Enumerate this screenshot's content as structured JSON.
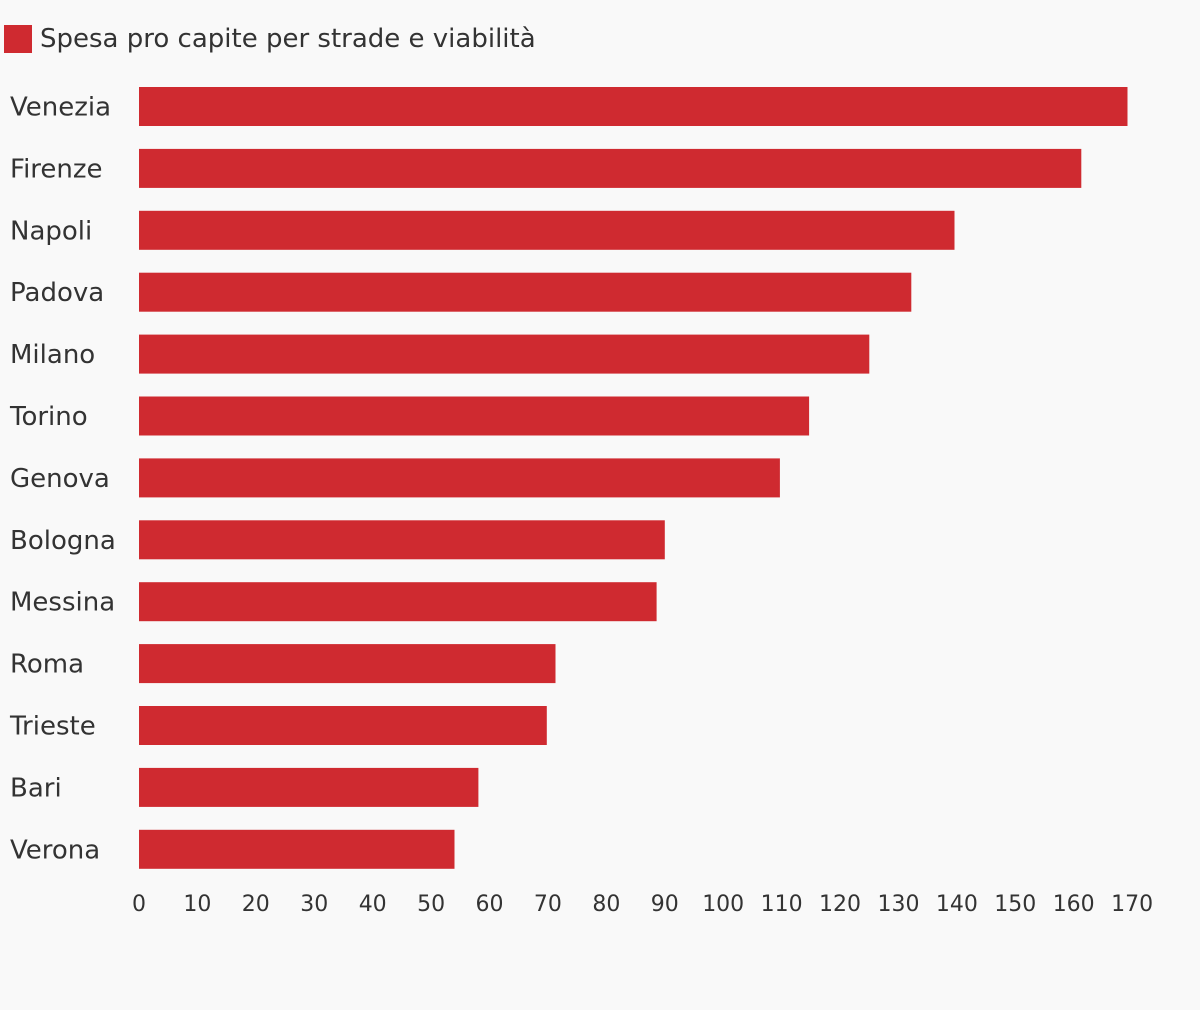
{
  "legend": {
    "label": "Spesa pro capite per strade e viabilità"
  },
  "colors": {
    "bar": "#cf2a30",
    "text": "#333333",
    "background": "#f9f9f9"
  },
  "chart_data": {
    "type": "bar",
    "orientation": "horizontal",
    "categories": [
      "Venezia",
      "Firenze",
      "Napoli",
      "Padova",
      "Milano",
      "Torino",
      "Genova",
      "Bologna",
      "Messina",
      "Roma",
      "Trieste",
      "Bari",
      "Verona"
    ],
    "series": [
      {
        "name": "Spesa pro capite per strade e viabilità",
        "values": [
          169.2,
          161.3,
          139.6,
          132.2,
          125.0,
          114.7,
          109.7,
          90.0,
          88.6,
          71.3,
          69.8,
          58.1,
          54.0
        ]
      }
    ],
    "xlim": [
      0,
      170
    ],
    "xticks": [
      0,
      10,
      20,
      30,
      40,
      50,
      60,
      70,
      80,
      90,
      100,
      110,
      120,
      130,
      140,
      150,
      160,
      170
    ],
    "legend_position": "top-left",
    "grid": false
  }
}
